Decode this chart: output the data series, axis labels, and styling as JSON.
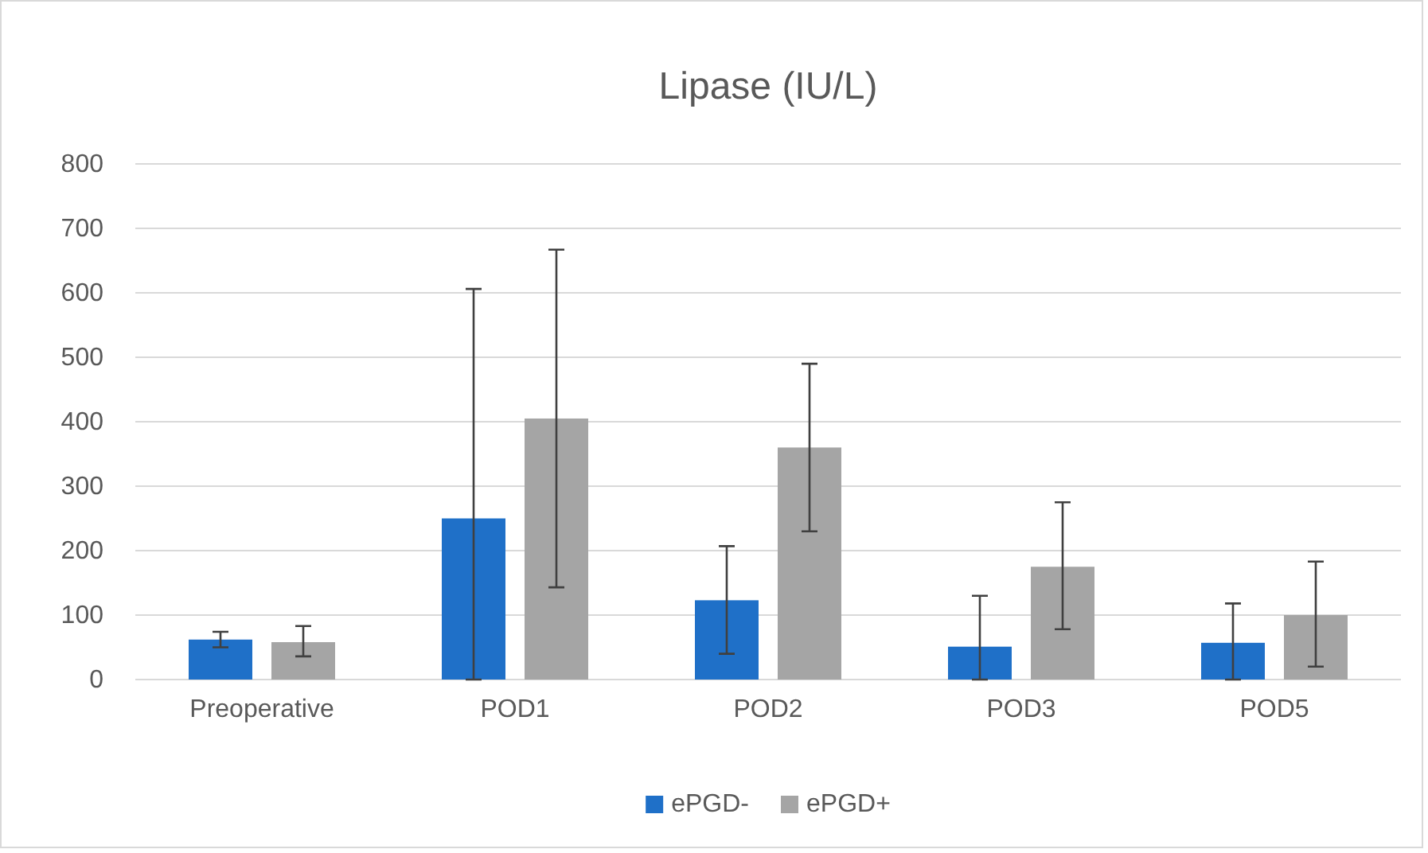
{
  "chart_data": {
    "type": "bar",
    "title": "Lipase (IU/L)",
    "categories": [
      "Preoperative",
      "POD1",
      "POD2",
      "POD3",
      "POD5"
    ],
    "series": [
      {
        "name": "ePGD-",
        "color": "#1f70c8",
        "values": [
          62,
          250,
          123,
          51,
          57
        ],
        "errors": [
          [
            50,
            74
          ],
          [
            0,
            606
          ],
          [
            40,
            207
          ],
          [
            0,
            130
          ],
          [
            0,
            118
          ]
        ]
      },
      {
        "name": "ePGD+",
        "color": "#a5a5a5",
        "values": [
          58,
          405,
          360,
          175,
          100
        ],
        "errors": [
          [
            36,
            83
          ],
          [
            143,
            667
          ],
          [
            230,
            490
          ],
          [
            78,
            275
          ],
          [
            20,
            183
          ]
        ]
      }
    ],
    "ylim": [
      0,
      800
    ],
    "yticks": [
      0,
      100,
      200,
      300,
      400,
      500,
      600,
      700,
      800
    ],
    "grid": "y",
    "legend": "bottom"
  }
}
